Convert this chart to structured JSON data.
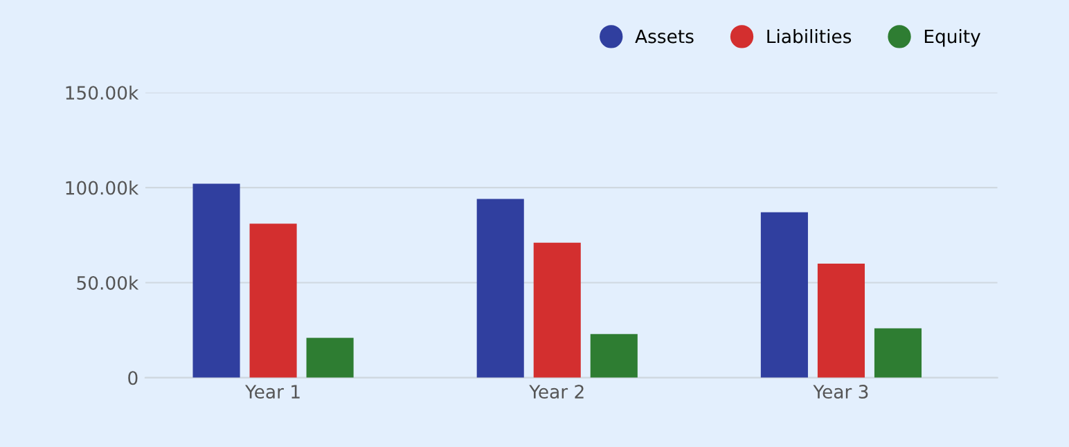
{
  "chart_data": {
    "type": "bar",
    "categories": [
      "Year 1",
      "Year 2",
      "Year 3"
    ],
    "series": [
      {
        "name": "Assets",
        "color": "#303f9f",
        "values": [
          102000,
          94000,
          87000
        ]
      },
      {
        "name": "Liabilities",
        "color": "#d32f2f",
        "values": [
          81000,
          71000,
          60000
        ]
      },
      {
        "name": "Equity",
        "color": "#2e7d32",
        "values": [
          21000,
          23000,
          26000
        ]
      }
    ],
    "ylim": [
      0,
      150000
    ],
    "yticks": [
      0,
      {
        "value": 50000,
        "label": "50.00k"
      },
      {
        "value": 100000,
        "label": "100.00k"
      },
      {
        "value": 150000,
        "label": "150.00k"
      }
    ],
    "grid": "y",
    "legend": "top right",
    "marker": "circle"
  }
}
